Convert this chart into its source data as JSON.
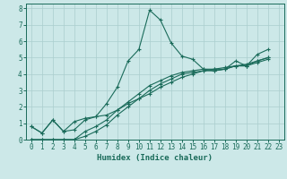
{
  "xlabel": "Humidex (Indice chaleur)",
  "ylabel": "",
  "xlim": [
    -0.5,
    23.5
  ],
  "ylim": [
    0,
    8.5
  ],
  "ylim_display": [
    0,
    8
  ],
  "xticks": [
    0,
    1,
    2,
    3,
    4,
    5,
    6,
    7,
    8,
    9,
    10,
    11,
    12,
    13,
    14,
    15,
    16,
    17,
    18,
    19,
    20,
    21,
    22,
    23
  ],
  "yticks": [
    0,
    1,
    2,
    3,
    4,
    5,
    6,
    7,
    8
  ],
  "background_color": "#cce8e8",
  "line_color": "#1a6b5a",
  "grid_color": "#aacece",
  "series": [
    [
      0.8,
      0.4,
      1.2,
      0.5,
      0.6,
      1.2,
      1.4,
      2.2,
      3.2,
      4.8,
      5.5,
      7.9,
      7.3,
      5.9,
      5.1,
      4.9,
      4.3,
      4.2,
      4.3,
      4.8,
      4.5,
      5.2,
      5.5
    ],
    [
      0.8,
      0.4,
      1.2,
      0.5,
      1.1,
      1.3,
      1.4,
      1.5,
      1.8,
      2.2,
      2.5,
      2.8,
      3.2,
      3.5,
      3.8,
      4.0,
      4.2,
      4.3,
      4.3,
      4.5,
      4.5,
      4.8,
      5.0
    ],
    [
      0.0,
      0.0,
      0.0,
      0.0,
      0.0,
      0.5,
      0.8,
      1.2,
      1.8,
      2.3,
      2.8,
      3.3,
      3.6,
      3.9,
      4.1,
      4.2,
      4.3,
      4.3,
      4.4,
      4.5,
      4.6,
      4.8,
      5.0
    ],
    [
      0.0,
      0.0,
      0.0,
      0.0,
      0.0,
      0.2,
      0.5,
      0.9,
      1.5,
      2.0,
      2.5,
      3.0,
      3.4,
      3.7,
      4.0,
      4.1,
      4.2,
      4.2,
      4.3,
      4.5,
      4.5,
      4.7,
      4.9
    ]
  ],
  "x_start": 0,
  "tick_fontsize": 5.5,
  "xlabel_fontsize": 6.5
}
